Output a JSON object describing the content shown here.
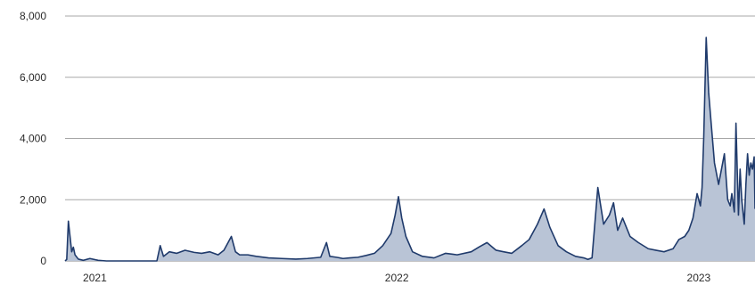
{
  "chart_data": {
    "type": "area",
    "title": "",
    "xlabel": "",
    "ylabel": "",
    "ylim": [
      0,
      8000
    ],
    "y_ticks": [
      {
        "value": 0,
        "label": "0"
      },
      {
        "value": 2000,
        "label": "2,000"
      },
      {
        "value": 4000,
        "label": "4,000"
      },
      {
        "value": 6000,
        "label": "6,000"
      },
      {
        "value": 8000,
        "label": "8,000"
      }
    ],
    "x_ticks": [
      {
        "value": "2021-01-01",
        "label": "2021"
      },
      {
        "value": "2022-01-01",
        "label": "2022"
      },
      {
        "value": "2023-01-01",
        "label": "2023"
      }
    ],
    "xlim": [
      "2020-11-26",
      "2023-03-10"
    ],
    "grid": "horizontal",
    "legend": "none",
    "colors": {
      "line": "#1f3a6b",
      "fill": "#b9c4d6",
      "grid": "#a7a7a7",
      "text": "#2b2b2b"
    },
    "series": [
      {
        "x": [
          "2020-11-26",
          "2020-11-28",
          "2020-11-30",
          "2020-12-02",
          "2020-12-04",
          "2020-12-06",
          "2020-12-08",
          "2020-12-12",
          "2020-12-18",
          "2020-12-26",
          "2021-01-05",
          "2021-01-15",
          "2021-01-25",
          "2021-02-05",
          "2021-02-15",
          "2021-02-25",
          "2021-03-05",
          "2021-03-17",
          "2021-03-21",
          "2021-03-25",
          "2021-04-01",
          "2021-04-10",
          "2021-04-20",
          "2021-05-01",
          "2021-05-10",
          "2021-05-20",
          "2021-05-30",
          "2021-06-06",
          "2021-06-15",
          "2021-06-20",
          "2021-06-25",
          "2021-07-05",
          "2021-07-15",
          "2021-07-30",
          "2021-08-15",
          "2021-09-01",
          "2021-09-15",
          "2021-10-01",
          "2021-10-08",
          "2021-10-12",
          "2021-10-20",
          "2021-10-28",
          "2021-11-05",
          "2021-11-15",
          "2021-11-25",
          "2021-12-05",
          "2021-12-15",
          "2021-12-25",
          "2021-12-30",
          "2022-01-03",
          "2022-01-07",
          "2022-01-12",
          "2022-01-20",
          "2022-02-01",
          "2022-02-15",
          "2022-03-01",
          "2022-03-15",
          "2022-04-01",
          "2022-04-10",
          "2022-04-20",
          "2022-05-01",
          "2022-05-10",
          "2022-05-20",
          "2022-06-01",
          "2022-06-10",
          "2022-06-20",
          "2022-06-28",
          "2022-07-05",
          "2022-07-15",
          "2022-07-25",
          "2022-08-05",
          "2022-08-15",
          "2022-08-20",
          "2022-08-25",
          "2022-09-01",
          "2022-09-08",
          "2022-09-15",
          "2022-09-20",
          "2022-09-25",
          "2022-10-01",
          "2022-10-10",
          "2022-10-20",
          "2022-11-01",
          "2022-11-10",
          "2022-11-20",
          "2022-12-01",
          "2022-12-08",
          "2022-12-15",
          "2022-12-20",
          "2022-12-25",
          "2022-12-30",
          "2023-01-03",
          "2023-01-05",
          "2023-01-07",
          "2023-01-10",
          "2023-01-13",
          "2023-01-16",
          "2023-01-20",
          "2023-01-25",
          "2023-02-01",
          "2023-02-05",
          "2023-02-08",
          "2023-02-10",
          "2023-02-13",
          "2023-02-15",
          "2023-02-18",
          "2023-02-20",
          "2023-02-22",
          "2023-02-25",
          "2023-02-27",
          "2023-03-01",
          "2023-03-03",
          "2023-03-05",
          "2023-03-07",
          "2023-03-09",
          "2023-03-10"
        ],
        "values": [
          0,
          50,
          1300,
          800,
          300,
          450,
          200,
          60,
          20,
          80,
          20,
          0,
          0,
          0,
          0,
          0,
          0,
          0,
          500,
          150,
          300,
          250,
          350,
          280,
          250,
          300,
          200,
          350,
          800,
          300,
          200,
          200,
          150,
          100,
          80,
          60,
          80,
          120,
          600,
          150,
          120,
          80,
          100,
          120,
          180,
          250,
          500,
          900,
          1500,
          2100,
          1400,
          800,
          300,
          150,
          100,
          250,
          200,
          300,
          450,
          600,
          350,
          300,
          250,
          500,
          700,
          1200,
          1700,
          1100,
          500,
          300,
          150,
          100,
          50,
          100,
          2400,
          1200,
          1500,
          1900,
          1000,
          1400,
          800,
          600,
          400,
          350,
          300,
          400,
          700,
          800,
          1000,
          1400,
          2200,
          1800,
          2400,
          4000,
          7300,
          5500,
          4500,
          3200,
          2500,
          3500,
          2000,
          1800,
          2200,
          1600,
          4500,
          1500,
          3000,
          2000,
          1200,
          2500,
          3500,
          2800,
          3200,
          3000,
          3400,
          1700
        ]
      }
    ]
  }
}
